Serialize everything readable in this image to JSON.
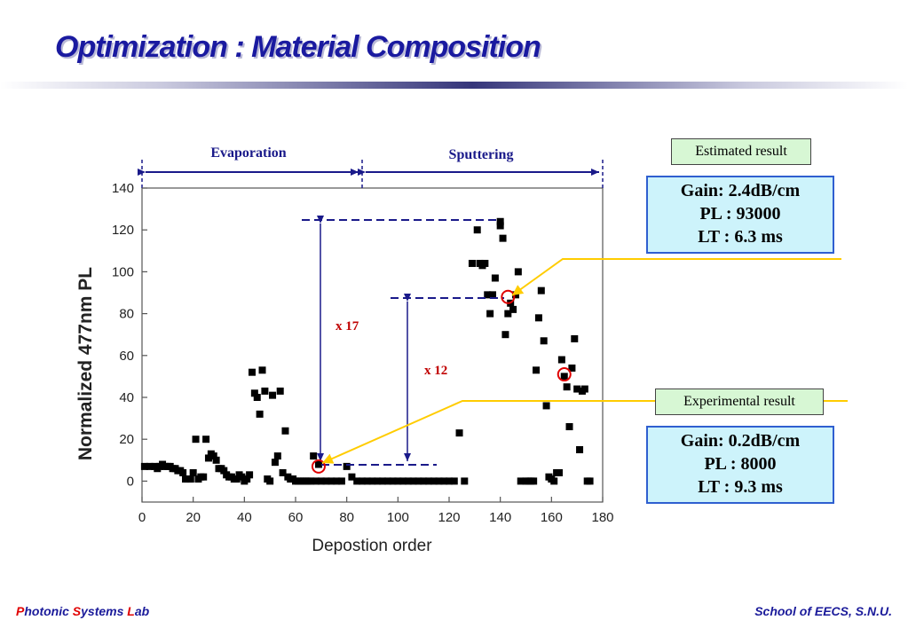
{
  "slide": {
    "title": "Optimization : Material Composition",
    "footer_left": {
      "p": "P",
      "hotonic": "hotonic ",
      "s": "S",
      "ystems": "ystems ",
      "l": "L",
      "ab": "ab"
    },
    "footer_right": "School of EECS, S.N.U."
  },
  "regions": {
    "left": "Evaporation",
    "right": "Sputtering"
  },
  "annotations": {
    "ratio_high": "x 17",
    "ratio_low": "x 12"
  },
  "estimated": {
    "label": "Estimated result",
    "lines": [
      "Gain: 2.4dB/cm",
      "PL : 93000",
      "LT : 6.3 ms"
    ]
  },
  "experimental": {
    "label": "Experimental result",
    "lines": [
      "Gain: 0.2dB/cm",
      "PL : 8000",
      "LT : 9.3 ms"
    ]
  },
  "colors": {
    "title": "#1a1aa0",
    "marker": "#000000",
    "circle": "#e00000",
    "arrow_line": "#ffcc00",
    "annotation": "#c00000",
    "region_arrow": "#1a1a8a"
  },
  "chart_data": {
    "type": "scatter",
    "xlabel": "Depostion order",
    "ylabel": "Normalized 477nm PL",
    "xlim": [
      0,
      180
    ],
    "ylim": [
      -10,
      140
    ],
    "xticks": [
      0,
      20,
      40,
      60,
      80,
      100,
      120,
      140,
      160,
      180
    ],
    "yticks": [
      0,
      20,
      40,
      60,
      80,
      100,
      120,
      140
    ],
    "grid": false,
    "points": [
      [
        1,
        7
      ],
      [
        3,
        7
      ],
      [
        5,
        7
      ],
      [
        6,
        6
      ],
      [
        7,
        7
      ],
      [
        8,
        8
      ],
      [
        9,
        7
      ],
      [
        10,
        7
      ],
      [
        11,
        7
      ],
      [
        12,
        6
      ],
      [
        13,
        6
      ],
      [
        14,
        5
      ],
      [
        15,
        5
      ],
      [
        16,
        4
      ],
      [
        17,
        1
      ],
      [
        18,
        1
      ],
      [
        19,
        1
      ],
      [
        20,
        4
      ],
      [
        21,
        20
      ],
      [
        22,
        1
      ],
      [
        23,
        2
      ],
      [
        24,
        2
      ],
      [
        25,
        20
      ],
      [
        26,
        11
      ],
      [
        27,
        13
      ],
      [
        28,
        12
      ],
      [
        29,
        10
      ],
      [
        30,
        6
      ],
      [
        31,
        6
      ],
      [
        32,
        5
      ],
      [
        33,
        3
      ],
      [
        34,
        2
      ],
      [
        35,
        2
      ],
      [
        36,
        1
      ],
      [
        37,
        1
      ],
      [
        38,
        3
      ],
      [
        39,
        2
      ],
      [
        40,
        0
      ],
      [
        41,
        1
      ],
      [
        42,
        3
      ],
      [
        43,
        52
      ],
      [
        44,
        42
      ],
      [
        45,
        40
      ],
      [
        46,
        32
      ],
      [
        47,
        53
      ],
      [
        48,
        43
      ],
      [
        49,
        1
      ],
      [
        50,
        0
      ],
      [
        51,
        41
      ],
      [
        52,
        9
      ],
      [
        53,
        12
      ],
      [
        54,
        43
      ],
      [
        55,
        4
      ],
      [
        56,
        24
      ],
      [
        57,
        2
      ],
      [
        58,
        1
      ],
      [
        59,
        1
      ],
      [
        60,
        0
      ],
      [
        61,
        0
      ],
      [
        62,
        0
      ],
      [
        63,
        0
      ],
      [
        64,
        0
      ],
      [
        65,
        0
      ],
      [
        66,
        0
      ],
      [
        67,
        12
      ],
      [
        68,
        0
      ],
      [
        69,
        8
      ],
      [
        70,
        0
      ],
      [
        72,
        0
      ],
      [
        74,
        0
      ],
      [
        76,
        0
      ],
      [
        78,
        0
      ],
      [
        80,
        7
      ],
      [
        82,
        2
      ],
      [
        84,
        0
      ],
      [
        86,
        0
      ],
      [
        88,
        0
      ],
      [
        90,
        0
      ],
      [
        92,
        0
      ],
      [
        94,
        0
      ],
      [
        96,
        0
      ],
      [
        98,
        0
      ],
      [
        100,
        0
      ],
      [
        102,
        0
      ],
      [
        104,
        0
      ],
      [
        106,
        0
      ],
      [
        108,
        0
      ],
      [
        110,
        0
      ],
      [
        112,
        0
      ],
      [
        114,
        0
      ],
      [
        116,
        0
      ],
      [
        118,
        0
      ],
      [
        120,
        0
      ],
      [
        122,
        0
      ],
      [
        124,
        23
      ],
      [
        126,
        0
      ],
      [
        129,
        104
      ],
      [
        131,
        120
      ],
      [
        132,
        104
      ],
      [
        133,
        103
      ],
      [
        134,
        104
      ],
      [
        135,
        89
      ],
      [
        136,
        80
      ],
      [
        137,
        89
      ],
      [
        138,
        97
      ],
      [
        140,
        122
      ],
      [
        140,
        124
      ],
      [
        141,
        116
      ],
      [
        142,
        70
      ],
      [
        143,
        80
      ],
      [
        144,
        85
      ],
      [
        145,
        82
      ],
      [
        146,
        89
      ],
      [
        147,
        100
      ],
      [
        148,
        0
      ],
      [
        150,
        0
      ],
      [
        151,
        0
      ],
      [
        152,
        0
      ],
      [
        153,
        0
      ],
      [
        154,
        53
      ],
      [
        155,
        78
      ],
      [
        156,
        91
      ],
      [
        157,
        67
      ],
      [
        158,
        36
      ],
      [
        159,
        2
      ],
      [
        160,
        1
      ],
      [
        161,
        0
      ],
      [
        162,
        4
      ],
      [
        163,
        4
      ],
      [
        164,
        58
      ],
      [
        165,
        50
      ],
      [
        166,
        45
      ],
      [
        167,
        26
      ],
      [
        168,
        54
      ],
      [
        169,
        68
      ],
      [
        170,
        44
      ],
      [
        171,
        15
      ],
      [
        172,
        43
      ],
      [
        173,
        44
      ],
      [
        174,
        0
      ],
      [
        175,
        0
      ]
    ],
    "highlighted": [
      [
        69,
        7
      ],
      [
        143,
        88
      ],
      [
        165,
        51
      ]
    ]
  }
}
